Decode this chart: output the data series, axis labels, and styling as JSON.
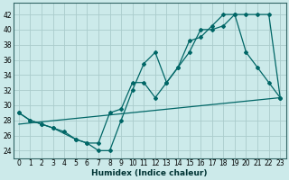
{
  "title": "",
  "xlabel": "Humidex (Indice chaleur)",
  "ylabel": "",
  "bg_color": "#cceaea",
  "line_color": "#006666",
  "grid_color": "#aacccc",
  "xlim": [
    -0.5,
    23.5
  ],
  "ylim": [
    23,
    43.5
  ],
  "yticks": [
    24,
    26,
    28,
    30,
    32,
    34,
    36,
    38,
    40,
    42
  ],
  "xticks": [
    0,
    1,
    2,
    3,
    4,
    5,
    6,
    7,
    8,
    9,
    10,
    11,
    12,
    13,
    14,
    15,
    16,
    17,
    18,
    19,
    20,
    21,
    22,
    23
  ],
  "line1_x": [
    0,
    1,
    2,
    3,
    4,
    5,
    6,
    7,
    8,
    9,
    10,
    11,
    12,
    13,
    14,
    15,
    16,
    17,
    18,
    19,
    20,
    21,
    22,
    23
  ],
  "line1_y": [
    29,
    28,
    27.5,
    27,
    26.5,
    25.5,
    25,
    25,
    29,
    29.5,
    33,
    33,
    31,
    33,
    35,
    38.5,
    39,
    40.5,
    42,
    42,
    37,
    35,
    33,
    31
  ],
  "line2_x": [
    0,
    1,
    2,
    3,
    5,
    6,
    7,
    8,
    9,
    10,
    11,
    12,
    13,
    14,
    15,
    16,
    17,
    18,
    19,
    20,
    21,
    22,
    23
  ],
  "line2_y": [
    29,
    28,
    27.5,
    27,
    25.5,
    25,
    24,
    24,
    28,
    32,
    35.5,
    37,
    33,
    35,
    37,
    40,
    40,
    40.5,
    42,
    42,
    42,
    42,
    31
  ],
  "line3_x": [
    0,
    23
  ],
  "line3_y": [
    27.5,
    31
  ]
}
